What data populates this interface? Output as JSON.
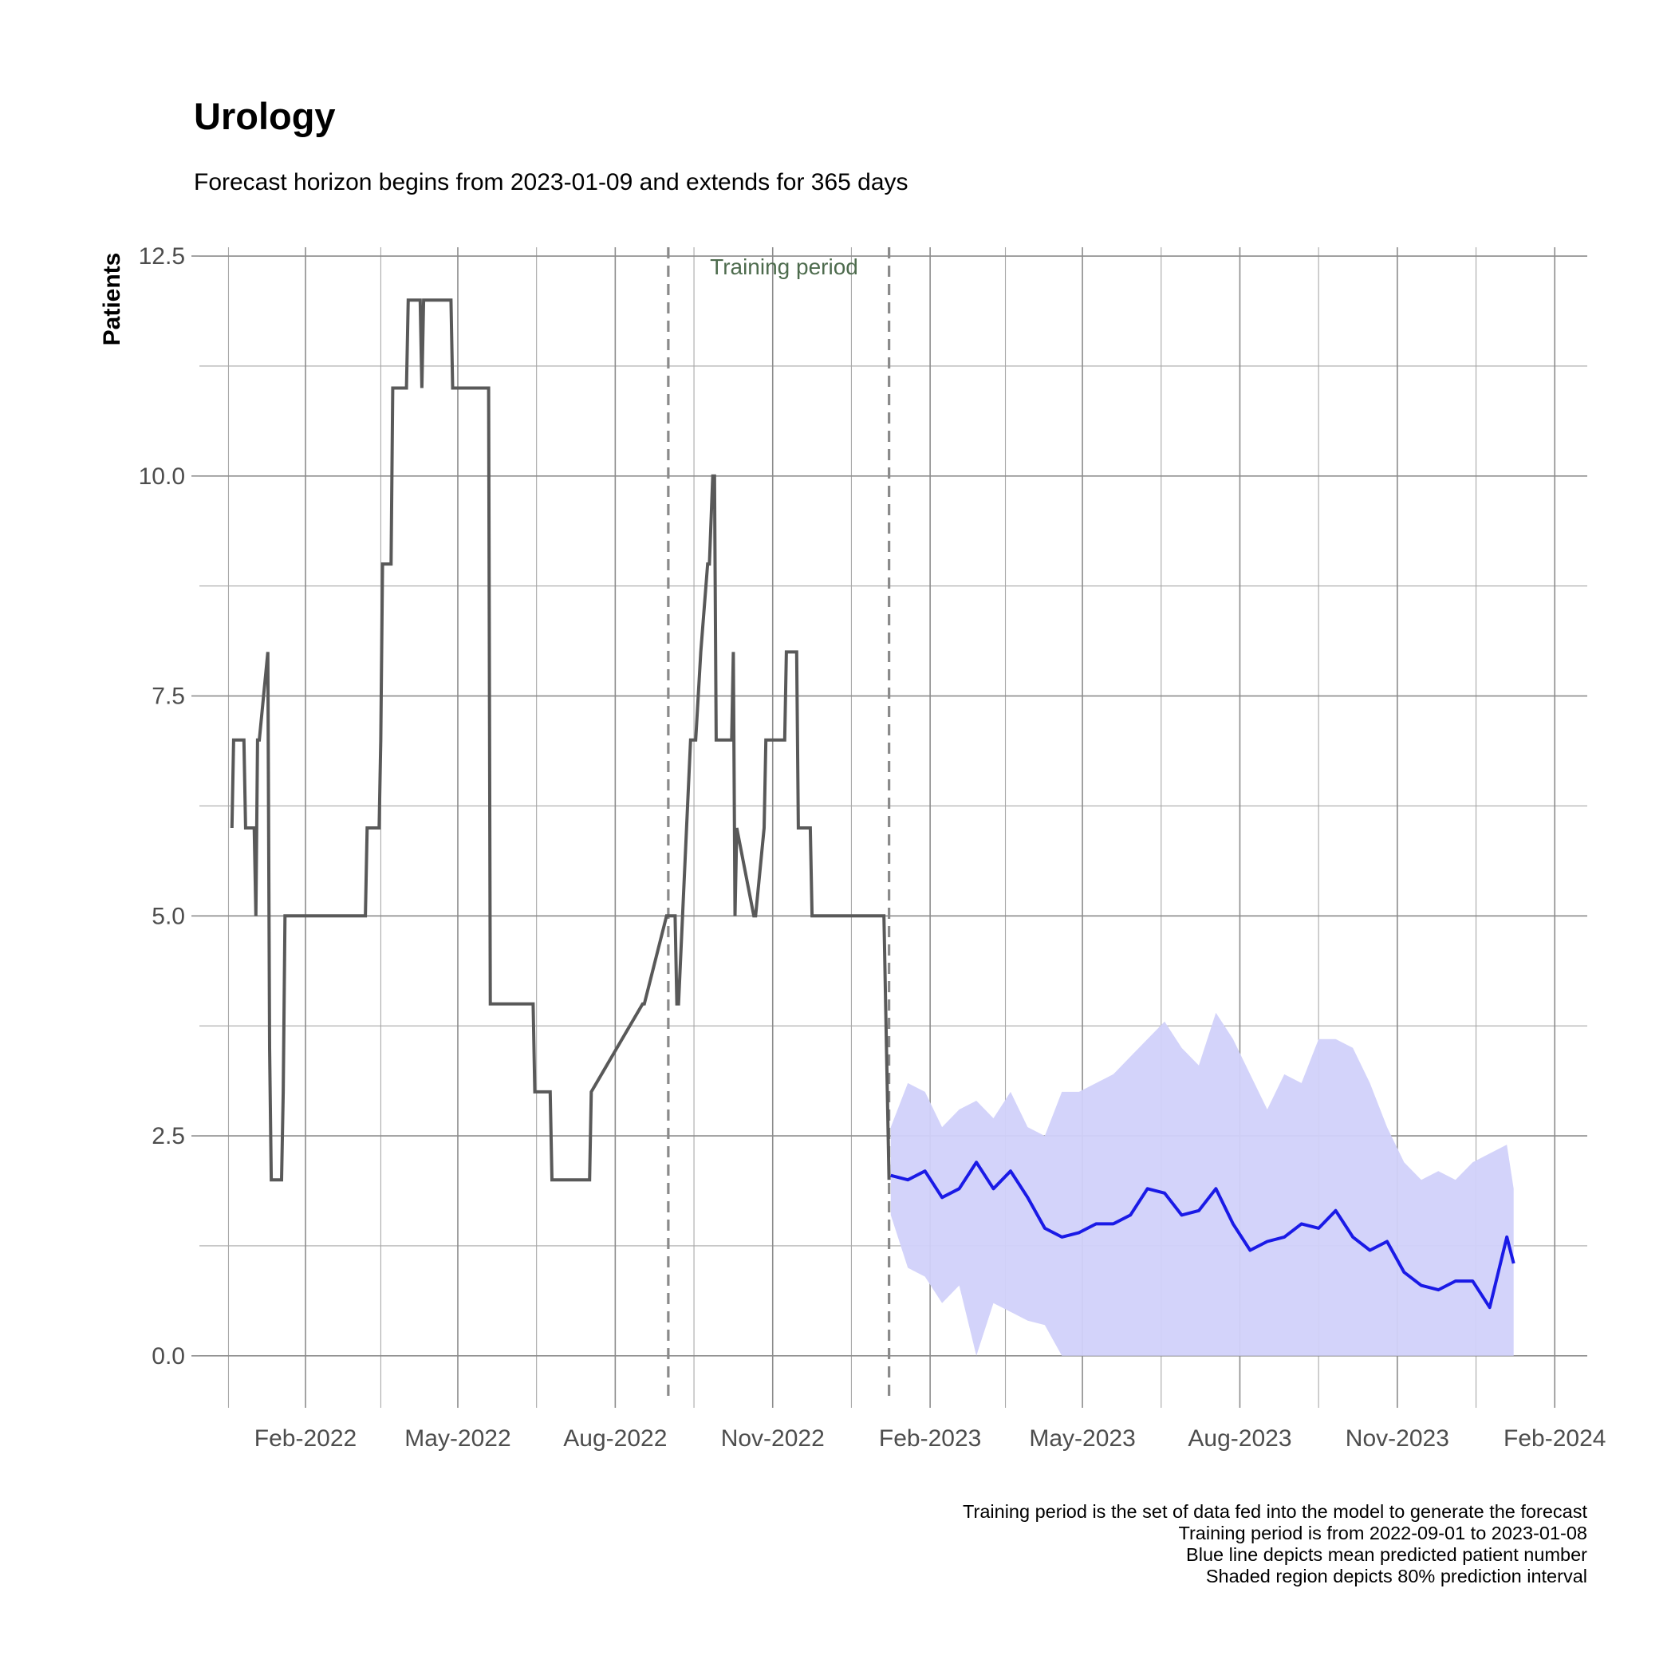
{
  "chart_data": {
    "type": "line",
    "title": "Urology",
    "subtitle": "Forecast horizon begins from 2023-01-09 and extends for 365 days",
    "ylabel": "Patients",
    "xlabel": "",
    "xlim": [
      "2021-12-01",
      "2024-02-20"
    ],
    "ylim": [
      -0.5,
      12.6
    ],
    "grid": true,
    "x_tick_labels": [
      "Feb-2022",
      "May-2022",
      "Aug-2022",
      "Nov-2022",
      "Feb-2023",
      "May-2023",
      "Aug-2023",
      "Nov-2023",
      "Feb-2024"
    ],
    "y_tick_labels": [
      "0.0",
      "2.5",
      "5.0",
      "7.5",
      "10.0",
      "12.5"
    ],
    "training_period": {
      "start": "2022-09-01",
      "end": "2023-01-08",
      "label": "Training period"
    },
    "series": [
      {
        "role": "observed",
        "color": "#595959",
        "x": [
          "2021-12-20",
          "2021-12-21",
          "2021-12-27",
          "2021-12-28",
          "2022-01-02",
          "2022-01-03",
          "2022-01-04",
          "2022-01-05",
          "2022-01-10",
          "2022-01-11",
          "2022-01-12",
          "2022-01-13",
          "2022-01-14",
          "2022-01-15",
          "2022-01-18",
          "2022-01-19",
          "2022-01-20",
          "2022-03-08",
          "2022-03-09",
          "2022-03-16",
          "2022-03-17",
          "2022-03-18",
          "2022-03-19",
          "2022-03-23",
          "2022-03-24",
          "2022-04-01",
          "2022-04-02",
          "2022-04-09",
          "2022-04-10",
          "2022-04-11",
          "2022-04-27",
          "2022-04-28",
          "2022-05-19",
          "2022-05-20",
          "2022-05-21",
          "2022-06-14",
          "2022-06-15",
          "2022-06-24",
          "2022-06-25",
          "2022-07-17",
          "2022-07-18",
          "2022-08-17",
          "2022-08-18",
          "2022-08-31",
          "2022-09-01",
          "2022-09-05",
          "2022-09-06",
          "2022-09-07",
          "2022-09-14",
          "2022-09-15",
          "2022-09-16",
          "2022-09-17",
          "2022-09-20",
          "2022-09-24",
          "2022-09-25",
          "2022-09-27",
          "2022-09-28",
          "2022-09-29",
          "2022-10-08",
          "2022-10-09",
          "2022-10-10",
          "2022-10-11",
          "2022-10-21",
          "2022-10-22",
          "2022-10-27",
          "2022-10-28",
          "2022-11-08",
          "2022-11-09",
          "2022-11-15",
          "2022-11-16",
          "2022-11-23",
          "2022-11-24",
          "2023-01-04",
          "2023-01-05",
          "2023-01-08"
        ],
        "y": [
          6,
          7,
          7,
          6,
          6,
          5,
          7,
          7,
          8,
          3.5,
          2,
          2,
          2,
          2,
          2,
          3,
          5,
          5,
          6,
          6,
          7,
          9,
          9,
          9,
          11,
          11,
          12,
          12,
          11,
          12,
          12,
          11,
          11,
          4,
          4,
          4,
          3,
          3,
          2,
          2,
          3,
          4,
          4,
          5,
          5,
          5,
          4,
          4,
          7,
          7,
          7,
          7,
          8,
          9,
          9,
          10,
          10,
          7,
          7,
          8,
          5,
          6,
          5,
          5,
          6,
          7,
          7,
          8,
          8,
          6,
          6,
          5,
          5,
          5,
          2
        ]
      },
      {
        "role": "forecast_mean",
        "color": "#1a1ae6",
        "x": [
          "2023-01-09",
          "2023-01-19",
          "2023-01-29",
          "2023-02-08",
          "2023-02-18",
          "2023-02-28",
          "2023-03-10",
          "2023-03-20",
          "2023-03-30",
          "2023-04-09",
          "2023-04-19",
          "2023-04-29",
          "2023-05-09",
          "2023-05-19",
          "2023-05-29",
          "2023-06-08",
          "2023-06-18",
          "2023-06-28",
          "2023-07-08",
          "2023-07-18",
          "2023-07-28",
          "2023-08-07",
          "2023-08-17",
          "2023-08-27",
          "2023-09-06",
          "2023-09-16",
          "2023-09-26",
          "2023-10-06",
          "2023-10-16",
          "2023-10-26",
          "2023-11-05",
          "2023-11-15",
          "2023-11-25",
          "2023-12-05",
          "2023-12-15",
          "2023-12-25",
          "2024-01-04",
          "2024-01-08"
        ],
        "y": [
          2.05,
          2.0,
          2.1,
          1.8,
          1.9,
          2.2,
          1.9,
          2.1,
          1.8,
          1.45,
          1.35,
          1.4,
          1.5,
          1.5,
          1.6,
          1.9,
          1.85,
          1.6,
          1.65,
          1.9,
          1.5,
          1.2,
          1.3,
          1.35,
          1.5,
          1.45,
          1.65,
          1.35,
          1.2,
          1.3,
          0.95,
          0.8,
          0.75,
          0.85,
          0.85,
          0.55,
          1.35,
          1.05
        ]
      }
    ],
    "prediction_interval": {
      "color": "#d1d1fa",
      "level": "80%",
      "x": [
        "2023-01-09",
        "2023-01-19",
        "2023-01-29",
        "2023-02-08",
        "2023-02-18",
        "2023-02-28",
        "2023-03-10",
        "2023-03-20",
        "2023-03-30",
        "2023-04-09",
        "2023-04-19",
        "2023-04-29",
        "2023-05-09",
        "2023-05-19",
        "2023-05-29",
        "2023-06-08",
        "2023-06-18",
        "2023-06-28",
        "2023-07-08",
        "2023-07-18",
        "2023-07-28",
        "2023-08-07",
        "2023-08-17",
        "2023-08-27",
        "2023-09-06",
        "2023-09-16",
        "2023-09-26",
        "2023-10-06",
        "2023-10-16",
        "2023-10-26",
        "2023-11-05",
        "2023-11-15",
        "2023-11-25",
        "2023-12-05",
        "2023-12-15",
        "2023-12-25",
        "2024-01-04",
        "2024-01-08"
      ],
      "lower": [
        1.6,
        1.0,
        0.9,
        0.6,
        0.8,
        0.0,
        0.6,
        0.5,
        0.4,
        0.35,
        0.0,
        0.0,
        0.0,
        0.0,
        0.0,
        0.0,
        0.0,
        0.0,
        0.0,
        0.0,
        0.0,
        0.0,
        0.0,
        0.0,
        0.0,
        0.0,
        0.0,
        0.0,
        0.0,
        0.0,
        0.0,
        0.0,
        0.0,
        0.0,
        0.0,
        0.0,
        0.0,
        0.0
      ],
      "upper": [
        2.6,
        3.1,
        3.0,
        2.6,
        2.8,
        2.9,
        2.7,
        3.0,
        2.6,
        2.5,
        3.0,
        3.0,
        3.1,
        3.2,
        3.4,
        3.6,
        3.8,
        3.5,
        3.3,
        3.9,
        3.6,
        3.2,
        2.8,
        3.2,
        3.1,
        3.6,
        3.6,
        3.5,
        3.1,
        2.6,
        2.2,
        2.0,
        2.1,
        2.0,
        2.2,
        2.3,
        2.4,
        1.9
      ]
    },
    "caption": [
      "Training period is the set of data fed into the model to generate the forecast",
      "Training period is from 2022-09-01 to 2023-01-08",
      "Blue line depicts mean predicted patient number",
      "Shaded region depicts 80% prediction interval"
    ]
  }
}
